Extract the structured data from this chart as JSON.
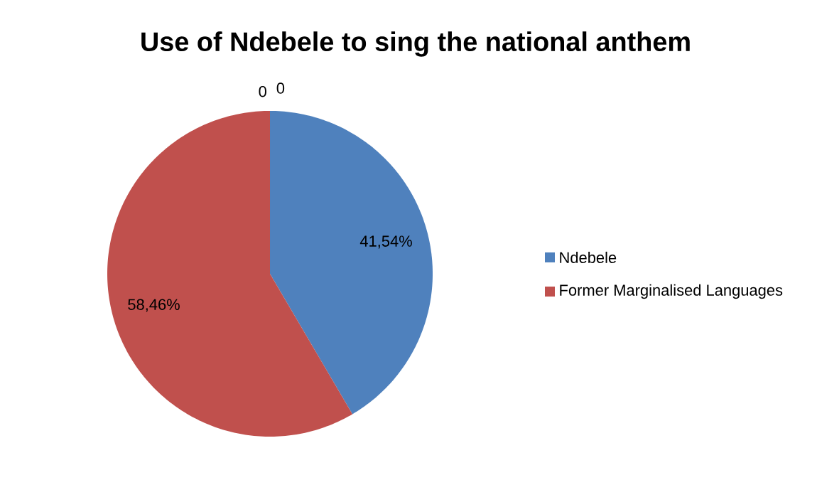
{
  "chart_data": {
    "type": "pie",
    "title": "Use of Ndebele to sing the national anthem",
    "categories": [
      "Ndebele",
      "Former Marginalised Languages"
    ],
    "values": [
      41.54,
      58.46
    ],
    "colors": [
      "#4f81bd",
      "#c0504d"
    ],
    "value_labels": [
      "41,54%",
      "58,46%"
    ],
    "annotations": [
      "0",
      "0"
    ],
    "legend": "right"
  }
}
